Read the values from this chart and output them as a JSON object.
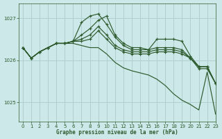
{
  "bg_color": "#cce8e8",
  "grid_color": "#b0d0d0",
  "line_color": "#2d5a2d",
  "xlabel": "Graphe pression niveau de la mer (hPa)",
  "xlim": [
    -0.5,
    23
  ],
  "ylim": [
    1024.55,
    1027.35
  ],
  "yticks": [
    1025,
    1026,
    1027
  ],
  "xticks": [
    0,
    1,
    2,
    3,
    4,
    5,
    6,
    7,
    8,
    9,
    10,
    11,
    12,
    13,
    14,
    15,
    16,
    17,
    18,
    19,
    20,
    21,
    22,
    23
  ],
  "series": [
    {
      "y": [
        1026.3,
        1026.05,
        1026.2,
        1026.3,
        1026.4,
        1026.4,
        1026.45,
        1026.6,
        1026.75,
        1026.95,
        1027.05,
        1026.6,
        1026.4,
        1026.3,
        1026.3,
        1026.25,
        1026.5,
        1026.5,
        1026.5,
        1026.45,
        1026.1,
        1025.85,
        1025.85,
        1025.45
      ],
      "marker": true
    },
    {
      "y": [
        1026.3,
        1026.05,
        1026.2,
        1026.3,
        1026.4,
        1026.4,
        1026.45,
        1026.5,
        1026.6,
        1026.8,
        1026.6,
        1026.35,
        1026.25,
        1026.2,
        1026.2,
        1026.2,
        1026.25,
        1026.25,
        1026.25,
        1026.2,
        1026.05,
        1025.85,
        1025.85,
        1025.45
      ],
      "marker": true
    },
    {
      "y": [
        1026.3,
        1026.05,
        1026.2,
        1026.3,
        1026.4,
        1026.4,
        1026.45,
        1026.45,
        1026.5,
        1026.7,
        1026.5,
        1026.3,
        1026.2,
        1026.15,
        1026.15,
        1026.15,
        1026.2,
        1026.2,
        1026.2,
        1026.15,
        1026.05,
        1025.85,
        1025.85,
        1025.45
      ],
      "marker": true
    },
    {
      "y": [
        1026.3,
        1026.05,
        1026.2,
        1026.3,
        1026.4,
        1026.4,
        1026.45,
        1026.9,
        1027.05,
        1027.1,
        1026.85,
        1026.55,
        1026.35,
        1026.25,
        1026.25,
        1026.25,
        1026.3,
        1026.3,
        1026.3,
        1026.25,
        1026.05,
        1025.8,
        1025.8,
        1025.45
      ],
      "marker": true
    },
    {
      "y": [
        1026.3,
        1026.05,
        1026.2,
        1026.3,
        1026.4,
        1026.4,
        1026.4,
        1026.35,
        1026.3,
        1026.3,
        1026.15,
        1025.95,
        1025.82,
        1025.75,
        1025.7,
        1025.65,
        1025.55,
        1025.4,
        1025.2,
        1025.05,
        1024.95,
        1024.82,
        1025.72,
        1024.72
      ],
      "marker": false
    }
  ]
}
